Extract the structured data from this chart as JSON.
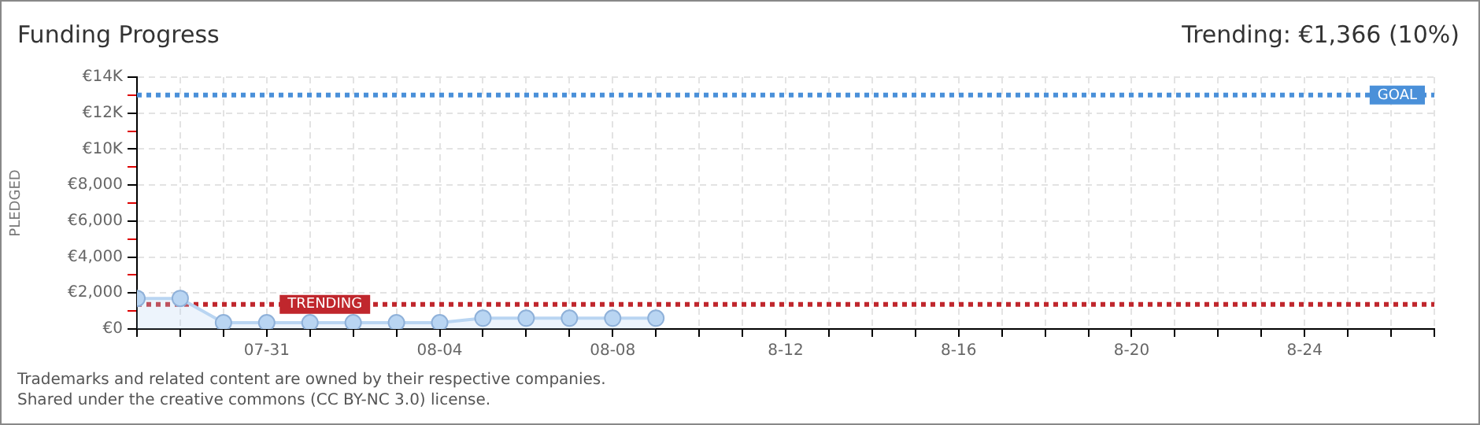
{
  "chart_data": {
    "type": "area",
    "title": "Funding Progress",
    "subtitle": "Trending: €1,366 (10%)",
    "ylabel": "PLEDGED",
    "x": [
      "--07-28",
      "--07-29",
      "--07-30",
      "--07-31",
      "--08-01",
      "--08-02",
      "--08-03",
      "--08-04",
      "--08-05",
      "--08-06",
      "--08-07",
      "--08-08",
      "--08-09"
    ],
    "series": [
      {
        "color": "#b9d5f2",
        "values": [
          1700,
          1700,
          350,
          350,
          350,
          350,
          350,
          350,
          600,
          600,
          600,
          600,
          600
        ]
      }
    ],
    "xlim": [
      "--07-28",
      "--08-27"
    ],
    "xticks": [
      {
        "value": "--07-28",
        "label": null
      },
      {
        "value": "--07-29",
        "label": null
      },
      {
        "value": "--07-30",
        "label": null
      },
      {
        "value": "--07-31",
        "label": "07-31"
      },
      {
        "value": "--08-01",
        "label": null
      },
      {
        "value": "--08-02",
        "label": null
      },
      {
        "value": "--08-03",
        "label": null
      },
      {
        "value": "--08-04",
        "label": "08-04"
      },
      {
        "value": "--08-05",
        "label": null
      },
      {
        "value": "--08-06",
        "label": null
      },
      {
        "value": "--08-07",
        "label": null
      },
      {
        "value": "--08-08",
        "label": "08-08"
      },
      {
        "value": "--08-09",
        "label": null
      },
      {
        "value": "--08-10",
        "label": null
      },
      {
        "value": "--08-11",
        "label": null
      },
      {
        "value": "--08-12",
        "label": "8-12"
      },
      {
        "value": "--08-13",
        "label": null
      },
      {
        "value": "--08-14",
        "label": null
      },
      {
        "value": "--08-15",
        "label": null
      },
      {
        "value": "--08-16",
        "label": "8-16"
      },
      {
        "value": "--08-17",
        "label": null
      },
      {
        "value": "--08-18",
        "label": null
      },
      {
        "value": "--08-19",
        "label": null
      },
      {
        "value": "--08-20",
        "label": "8-20"
      },
      {
        "value": "--08-21",
        "label": null
      },
      {
        "value": "--08-22",
        "label": null
      },
      {
        "value": "--08-23",
        "label": null
      },
      {
        "value": "--08-24",
        "label": "8-24"
      },
      {
        "value": "--08-25",
        "label": null
      },
      {
        "value": "--08-26",
        "label": null
      },
      {
        "value": "--08-27",
        "label": null
      }
    ],
    "ylim": [
      0,
      14000
    ],
    "yticks": [
      {
        "value": 0,
        "label": "€0"
      },
      {
        "value": 1000,
        "label": null
      },
      {
        "value": 2000,
        "label": "€2,000"
      },
      {
        "value": 3000,
        "label": null
      },
      {
        "value": 4000,
        "label": "€4,000"
      },
      {
        "value": 5000,
        "label": null
      },
      {
        "value": 6000,
        "label": "€6,000"
      },
      {
        "value": 7000,
        "label": null
      },
      {
        "value": 8000,
        "label": "€8,000"
      },
      {
        "value": 9000,
        "label": null
      },
      {
        "value": 10000,
        "label": "€10K"
      },
      {
        "value": 11000,
        "label": null
      },
      {
        "value": 12000,
        "label": "€12K"
      },
      {
        "value": 13000,
        "label": null
      },
      {
        "value": 14000,
        "label": "€14K"
      }
    ],
    "grid": true,
    "marker": "circle",
    "ref_lines": [
      {
        "axis": "y",
        "value": 13000,
        "label": "GOAL",
        "color": "#4a90d9",
        "line_style": "dotted"
      },
      {
        "axis": "y",
        "value": 1366,
        "label": "TRENDING",
        "color": "#c0272d",
        "line_style": "dotted"
      }
    ],
    "annotations": [
      "Trademarks and related content are owned by their respective companies.",
      "Shared under the creative commons (CC BY-NC 3.0) license."
    ]
  }
}
